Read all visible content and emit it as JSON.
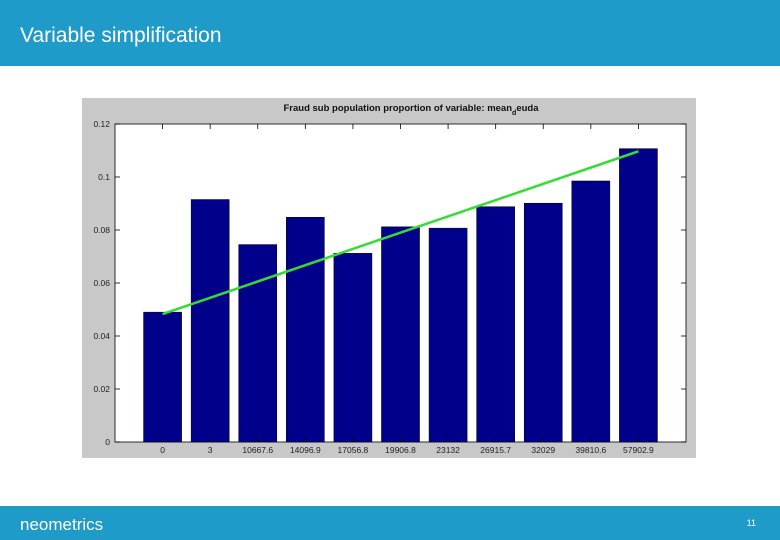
{
  "slide": {
    "title": "Variable simplification",
    "brand": "neometrics",
    "page_number": "11"
  },
  "colors": {
    "header": "#1f9bc9",
    "bar": "#00008b",
    "trend": "#33dd33",
    "figure_bg": "#c8c8c8"
  },
  "chart_data": {
    "type": "bar",
    "title_prefix": "Fraud sub population proportion of variable: mean",
    "title_subscript": "d",
    "title_suffix": "euda",
    "categories": [
      "0",
      "3",
      "10667.6",
      "14096.9",
      "17056.8",
      "19906.8",
      "23132",
      "26915.7",
      "32029",
      "39810.6",
      "57902.9"
    ],
    "values": [
      0.049,
      0.0915,
      0.0745,
      0.0848,
      0.0712,
      0.0812,
      0.0807,
      0.0888,
      0.0901,
      0.0985,
      0.1107
    ],
    "yticks": [
      "0",
      "0.02",
      "0.04",
      "0.06",
      "0.08",
      "0.1",
      "0.12"
    ],
    "ylim": [
      0,
      0.12
    ],
    "trendline": {
      "start": 0.0483,
      "end": 0.1097
    },
    "grid": false,
    "xlabel": "",
    "ylabel": ""
  }
}
